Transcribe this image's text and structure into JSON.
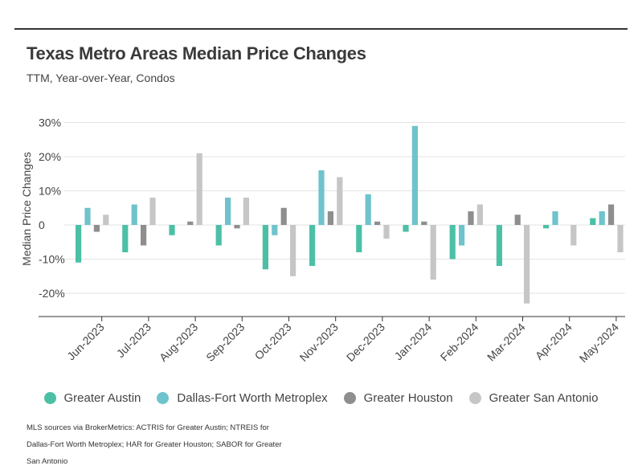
{
  "chart_data": {
    "type": "bar",
    "title": "Texas Metro Areas Median Price Changes",
    "subtitle": "TTM, Year-over-Year, Condos",
    "ylabel": "Median Price Changes",
    "xlabel": "",
    "ylim": [
      -26,
      30
    ],
    "yticks": [
      30,
      20,
      10,
      0,
      -10,
      -20
    ],
    "ytick_labels": [
      "30%",
      "20%",
      "10%",
      "0",
      "-10%",
      "-20%"
    ],
    "grid": true,
    "legend_position": "bottom",
    "categories": [
      "Jun-2023",
      "Jul-2023",
      "Aug-2023",
      "Sep-2023",
      "Oct-2023",
      "Nov-2023",
      "Dec-2023",
      "Jan-2024",
      "Feb-2024",
      "Mar-2024",
      "Apr-2024",
      "May-2024"
    ],
    "series": [
      {
        "name": "Greater Austin",
        "color": "#4cc0a6",
        "values": [
          -11,
          -8,
          -3,
          -6,
          -13,
          -12,
          -8,
          -2,
          -10,
          -12,
          -1,
          2
        ]
      },
      {
        "name": "Dallas-Fort Worth Metroplex",
        "color": "#6ec3cc",
        "values": [
          5,
          6,
          0,
          8,
          -3,
          16,
          9,
          29,
          -6,
          0,
          4,
          4
        ]
      },
      {
        "name": "Greater Houston",
        "color": "#8e8e8e",
        "values": [
          -2,
          -6,
          1,
          -1,
          5,
          4,
          1,
          1,
          4,
          3,
          0,
          6
        ]
      },
      {
        "name": "Greater San Antonio",
        "color": "#c6c6c6",
        "values": [
          3,
          8,
          21,
          8,
          -15,
          14,
          -4,
          -16,
          6,
          -23,
          -6,
          -8
        ]
      }
    ]
  },
  "footnote": "MLS sources via BrokerMetrics: ACTRIS for Greater Austin; NTREIS for Dallas-Fort Worth Metroplex; HAR for Greater Houston; SABOR for Greater San Antonio"
}
